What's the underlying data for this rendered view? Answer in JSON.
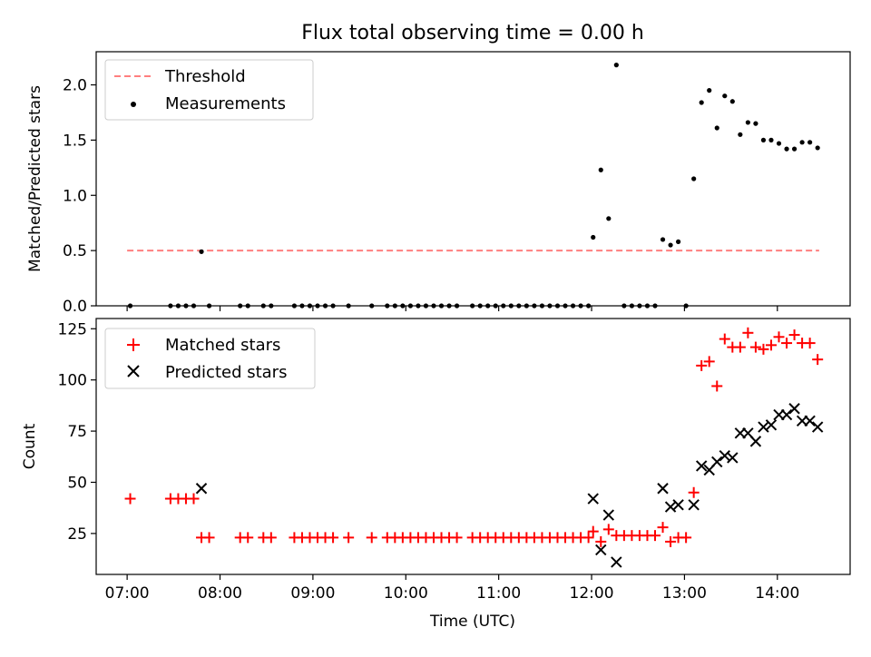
{
  "title": "Flux total observing time = 0.00 h",
  "chart_data": [
    {
      "type": "scatter",
      "ylabel": "Matched/Predicted stars",
      "ylim": [
        0,
        2.3
      ],
      "yticks": [
        0.0,
        0.5,
        1.0,
        1.5,
        2.0
      ],
      "ytick_labels": [
        "0.0",
        "0.5",
        "1.0",
        "1.5",
        "2.0"
      ],
      "threshold": {
        "name": "Threshold",
        "y": 0.5,
        "x_range": [
          "07:00",
          "14:27"
        ],
        "color": "#ff7f7f"
      },
      "legend_position": "top-left",
      "series": [
        {
          "name": "Measurements",
          "color": "#000000",
          "points": [
            [
              "07:02",
              0
            ],
            [
              "07:28",
              0
            ],
            [
              "07:33",
              0
            ],
            [
              "07:38",
              0
            ],
            [
              "07:43",
              0
            ],
            [
              "07:48",
              0.49
            ],
            [
              "07:53",
              0
            ],
            [
              "08:13",
              0
            ],
            [
              "08:18",
              0
            ],
            [
              "08:28",
              0
            ],
            [
              "08:33",
              0
            ],
            [
              "08:48",
              0
            ],
            [
              "08:53",
              0
            ],
            [
              "08:58",
              0
            ],
            [
              "09:03",
              0
            ],
            [
              "09:08",
              0
            ],
            [
              "09:13",
              0
            ],
            [
              "09:23",
              0
            ],
            [
              "09:38",
              0
            ],
            [
              "09:48",
              0
            ],
            [
              "09:53",
              0
            ],
            [
              "09:58",
              0
            ],
            [
              "10:03",
              0
            ],
            [
              "10:08",
              0
            ],
            [
              "10:13",
              0
            ],
            [
              "10:18",
              0
            ],
            [
              "10:23",
              0
            ],
            [
              "10:28",
              0
            ],
            [
              "10:33",
              0
            ],
            [
              "10:43",
              0
            ],
            [
              "10:48",
              0
            ],
            [
              "10:53",
              0
            ],
            [
              "10:58",
              0
            ],
            [
              "11:03",
              0
            ],
            [
              "11:08",
              0
            ],
            [
              "11:13",
              0
            ],
            [
              "11:18",
              0
            ],
            [
              "11:23",
              0
            ],
            [
              "11:28",
              0
            ],
            [
              "11:33",
              0
            ],
            [
              "11:38",
              0
            ],
            [
              "11:43",
              0
            ],
            [
              "11:48",
              0
            ],
            [
              "11:53",
              0
            ],
            [
              "11:58",
              0
            ],
            [
              "12:01",
              0.62
            ],
            [
              "12:06",
              1.23
            ],
            [
              "12:11",
              0.79
            ],
            [
              "12:16",
              2.18
            ],
            [
              "12:21",
              0
            ],
            [
              "12:26",
              0
            ],
            [
              "12:31",
              0
            ],
            [
              "12:36",
              0
            ],
            [
              "12:41",
              0
            ],
            [
              "12:46",
              0.6
            ],
            [
              "12:51",
              0.55
            ],
            [
              "12:56",
              0.58
            ],
            [
              "13:01",
              0
            ],
            [
              "13:06",
              1.15
            ],
            [
              "13:11",
              1.84
            ],
            [
              "13:16",
              1.95
            ],
            [
              "13:21",
              1.61
            ],
            [
              "13:26",
              1.9
            ],
            [
              "13:31",
              1.85
            ],
            [
              "13:36",
              1.55
            ],
            [
              "13:41",
              1.66
            ],
            [
              "13:46",
              1.65
            ],
            [
              "13:51",
              1.5
            ],
            [
              "13:56",
              1.5
            ],
            [
              "14:01",
              1.47
            ],
            [
              "14:06",
              1.42
            ],
            [
              "14:11",
              1.42
            ],
            [
              "14:16",
              1.48
            ],
            [
              "14:21",
              1.48
            ],
            [
              "14:26",
              1.43
            ]
          ]
        }
      ]
    },
    {
      "type": "scatter",
      "xlabel": "Time (UTC)",
      "ylabel": "Count",
      "ylim": [
        5,
        130
      ],
      "yticks": [
        25,
        50,
        75,
        100,
        125
      ],
      "ytick_labels": [
        "25",
        "50",
        "75",
        "100",
        "125"
      ],
      "xlim": [
        "06:40",
        "14:47"
      ],
      "xticks": [
        "07:00",
        "08:00",
        "09:00",
        "10:00",
        "11:00",
        "12:00",
        "13:00",
        "14:00"
      ],
      "legend_position": "top-left",
      "series": [
        {
          "name": "Matched stars",
          "color": "#ff0000",
          "marker": "+",
          "points": [
            [
              "07:02",
              42
            ],
            [
              "07:28",
              42
            ],
            [
              "07:33",
              42
            ],
            [
              "07:38",
              42
            ],
            [
              "07:43",
              42
            ],
            [
              "07:48",
              23
            ],
            [
              "07:53",
              23
            ],
            [
              "08:13",
              23
            ],
            [
              "08:18",
              23
            ],
            [
              "08:28",
              23
            ],
            [
              "08:33",
              23
            ],
            [
              "08:48",
              23
            ],
            [
              "08:53",
              23
            ],
            [
              "08:58",
              23
            ],
            [
              "09:03",
              23
            ],
            [
              "09:08",
              23
            ],
            [
              "09:13",
              23
            ],
            [
              "09:23",
              23
            ],
            [
              "09:38",
              23
            ],
            [
              "09:48",
              23
            ],
            [
              "09:53",
              23
            ],
            [
              "09:58",
              23
            ],
            [
              "10:03",
              23
            ],
            [
              "10:08",
              23
            ],
            [
              "10:13",
              23
            ],
            [
              "10:18",
              23
            ],
            [
              "10:23",
              23
            ],
            [
              "10:28",
              23
            ],
            [
              "10:33",
              23
            ],
            [
              "10:43",
              23
            ],
            [
              "10:48",
              23
            ],
            [
              "10:53",
              23
            ],
            [
              "10:58",
              23
            ],
            [
              "11:03",
              23
            ],
            [
              "11:08",
              23
            ],
            [
              "11:13",
              23
            ],
            [
              "11:18",
              23
            ],
            [
              "11:23",
              23
            ],
            [
              "11:28",
              23
            ],
            [
              "11:33",
              23
            ],
            [
              "11:38",
              23
            ],
            [
              "11:43",
              23
            ],
            [
              "11:48",
              23
            ],
            [
              "11:53",
              23
            ],
            [
              "11:58",
              23
            ],
            [
              "12:01",
              26
            ],
            [
              "12:06",
              21
            ],
            [
              "12:11",
              27
            ],
            [
              "12:16",
              24
            ],
            [
              "12:21",
              24
            ],
            [
              "12:26",
              24
            ],
            [
              "12:31",
              24
            ],
            [
              "12:36",
              24
            ],
            [
              "12:41",
              24
            ],
            [
              "12:46",
              28
            ],
            [
              "12:51",
              21
            ],
            [
              "12:56",
              23
            ],
            [
              "13:01",
              23
            ],
            [
              "13:06",
              45
            ],
            [
              "13:11",
              107
            ],
            [
              "13:16",
              109
            ],
            [
              "13:21",
              97
            ],
            [
              "13:26",
              120
            ],
            [
              "13:31",
              116
            ],
            [
              "13:36",
              116
            ],
            [
              "13:41",
              123
            ],
            [
              "13:46",
              116
            ],
            [
              "13:51",
              115
            ],
            [
              "13:56",
              117
            ],
            [
              "14:01",
              121
            ],
            [
              "14:06",
              118
            ],
            [
              "14:11",
              122
            ],
            [
              "14:16",
              118
            ],
            [
              "14:21",
              118
            ],
            [
              "14:26",
              110
            ]
          ]
        },
        {
          "name": "Predicted stars",
          "color": "#000000",
          "marker": "x",
          "points": [
            [
              "07:48",
              47
            ],
            [
              "12:01",
              42
            ],
            [
              "12:06",
              17
            ],
            [
              "12:11",
              34
            ],
            [
              "12:16",
              11
            ],
            [
              "12:46",
              47
            ],
            [
              "12:51",
              38
            ],
            [
              "12:56",
              39
            ],
            [
              "13:06",
              39
            ],
            [
              "13:11",
              58
            ],
            [
              "13:16",
              56
            ],
            [
              "13:21",
              60
            ],
            [
              "13:26",
              63
            ],
            [
              "13:31",
              62
            ],
            [
              "13:36",
              74
            ],
            [
              "13:41",
              74
            ],
            [
              "13:46",
              70
            ],
            [
              "13:51",
              77
            ],
            [
              "13:56",
              78
            ],
            [
              "14:01",
              83
            ],
            [
              "14:06",
              83
            ],
            [
              "14:11",
              86
            ],
            [
              "14:16",
              80
            ],
            [
              "14:21",
              80
            ],
            [
              "14:26",
              77
            ]
          ]
        }
      ]
    }
  ]
}
